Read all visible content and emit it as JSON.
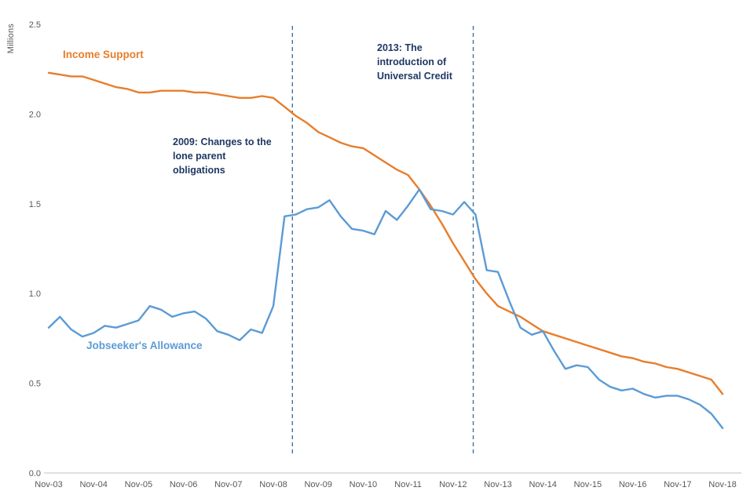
{
  "chart_data": {
    "type": "line",
    "title": "",
    "ylabel": "Millions",
    "xlabel": "",
    "ylim": [
      0,
      2.5
    ],
    "yticks": [
      0,
      0.5,
      1,
      1.5,
      2,
      2.5
    ],
    "ytick_labels": [
      "0.0",
      "0.5",
      "1.0",
      "1.5",
      "2.0",
      "2.5"
    ],
    "x_tick_labels": [
      "Nov-03",
      "Nov-04",
      "Nov-05",
      "Nov-06",
      "Nov-07",
      "Nov-08",
      "Nov-09",
      "Nov-10",
      "Nov-11",
      "Nov-12",
      "Nov-13",
      "Nov-14",
      "Nov-15",
      "Nov-16",
      "Nov-17",
      "Nov-18"
    ],
    "x_frequency": "quarterly",
    "points_per_year": 4,
    "grid": "off",
    "legend_position": "inline-labels",
    "series": [
      {
        "id": "income-support",
        "name": "Income Support",
        "color": "#E87D2B",
        "values": [
          2.23,
          2.22,
          2.21,
          2.21,
          2.19,
          2.17,
          2.15,
          2.14,
          2.12,
          2.12,
          2.13,
          2.13,
          2.13,
          2.12,
          2.12,
          2.11,
          2.1,
          2.09,
          2.09,
          2.1,
          2.09,
          2.04,
          1.99,
          1.95,
          1.9,
          1.87,
          1.84,
          1.82,
          1.81,
          1.77,
          1.73,
          1.69,
          1.66,
          1.58,
          1.49,
          1.39,
          1.28,
          1.18,
          1.08,
          1.0,
          0.93,
          0.9,
          0.87,
          0.83,
          0.79,
          0.77,
          0.75,
          0.73,
          0.71,
          0.69,
          0.67,
          0.65,
          0.64,
          0.62,
          0.61,
          0.59,
          0.58,
          0.56,
          0.54,
          0.52,
          0.44
        ]
      },
      {
        "id": "jobseekers-allowance",
        "name": "Jobseeker's Allowance",
        "color": "#5B9BD5",
        "values": [
          0.81,
          0.87,
          0.8,
          0.76,
          0.78,
          0.82,
          0.81,
          0.83,
          0.85,
          0.93,
          0.91,
          0.87,
          0.89,
          0.9,
          0.86,
          0.79,
          0.77,
          0.74,
          0.8,
          0.78,
          0.93,
          1.43,
          1.44,
          1.47,
          1.48,
          1.52,
          1.43,
          1.36,
          1.35,
          1.33,
          1.46,
          1.41,
          1.49,
          1.58,
          1.47,
          1.46,
          1.44,
          1.51,
          1.44,
          1.13,
          1.12,
          0.96,
          0.81,
          0.77,
          0.79,
          0.68,
          0.58,
          0.6,
          0.59,
          0.52,
          0.48,
          0.46,
          0.47,
          0.44,
          0.42,
          0.43,
          0.43,
          0.41,
          0.38,
          0.33,
          0.25
        ]
      }
    ],
    "reference_lines": [
      {
        "id": "2009",
        "x_index": 21.7,
        "label_lines": [
          "2009: Changes to the",
          "lone parent",
          "obligations"
        ]
      },
      {
        "id": "2013",
        "x_index": 37.8,
        "label_lines": [
          "2013: The",
          "introduction of",
          "Universal Credit"
        ]
      }
    ],
    "colors": {
      "axis_line": "#BFBFBF",
      "axis_text": "#595959",
      "reference_line": "#41719C",
      "annotation_text": "#1F3864"
    }
  }
}
